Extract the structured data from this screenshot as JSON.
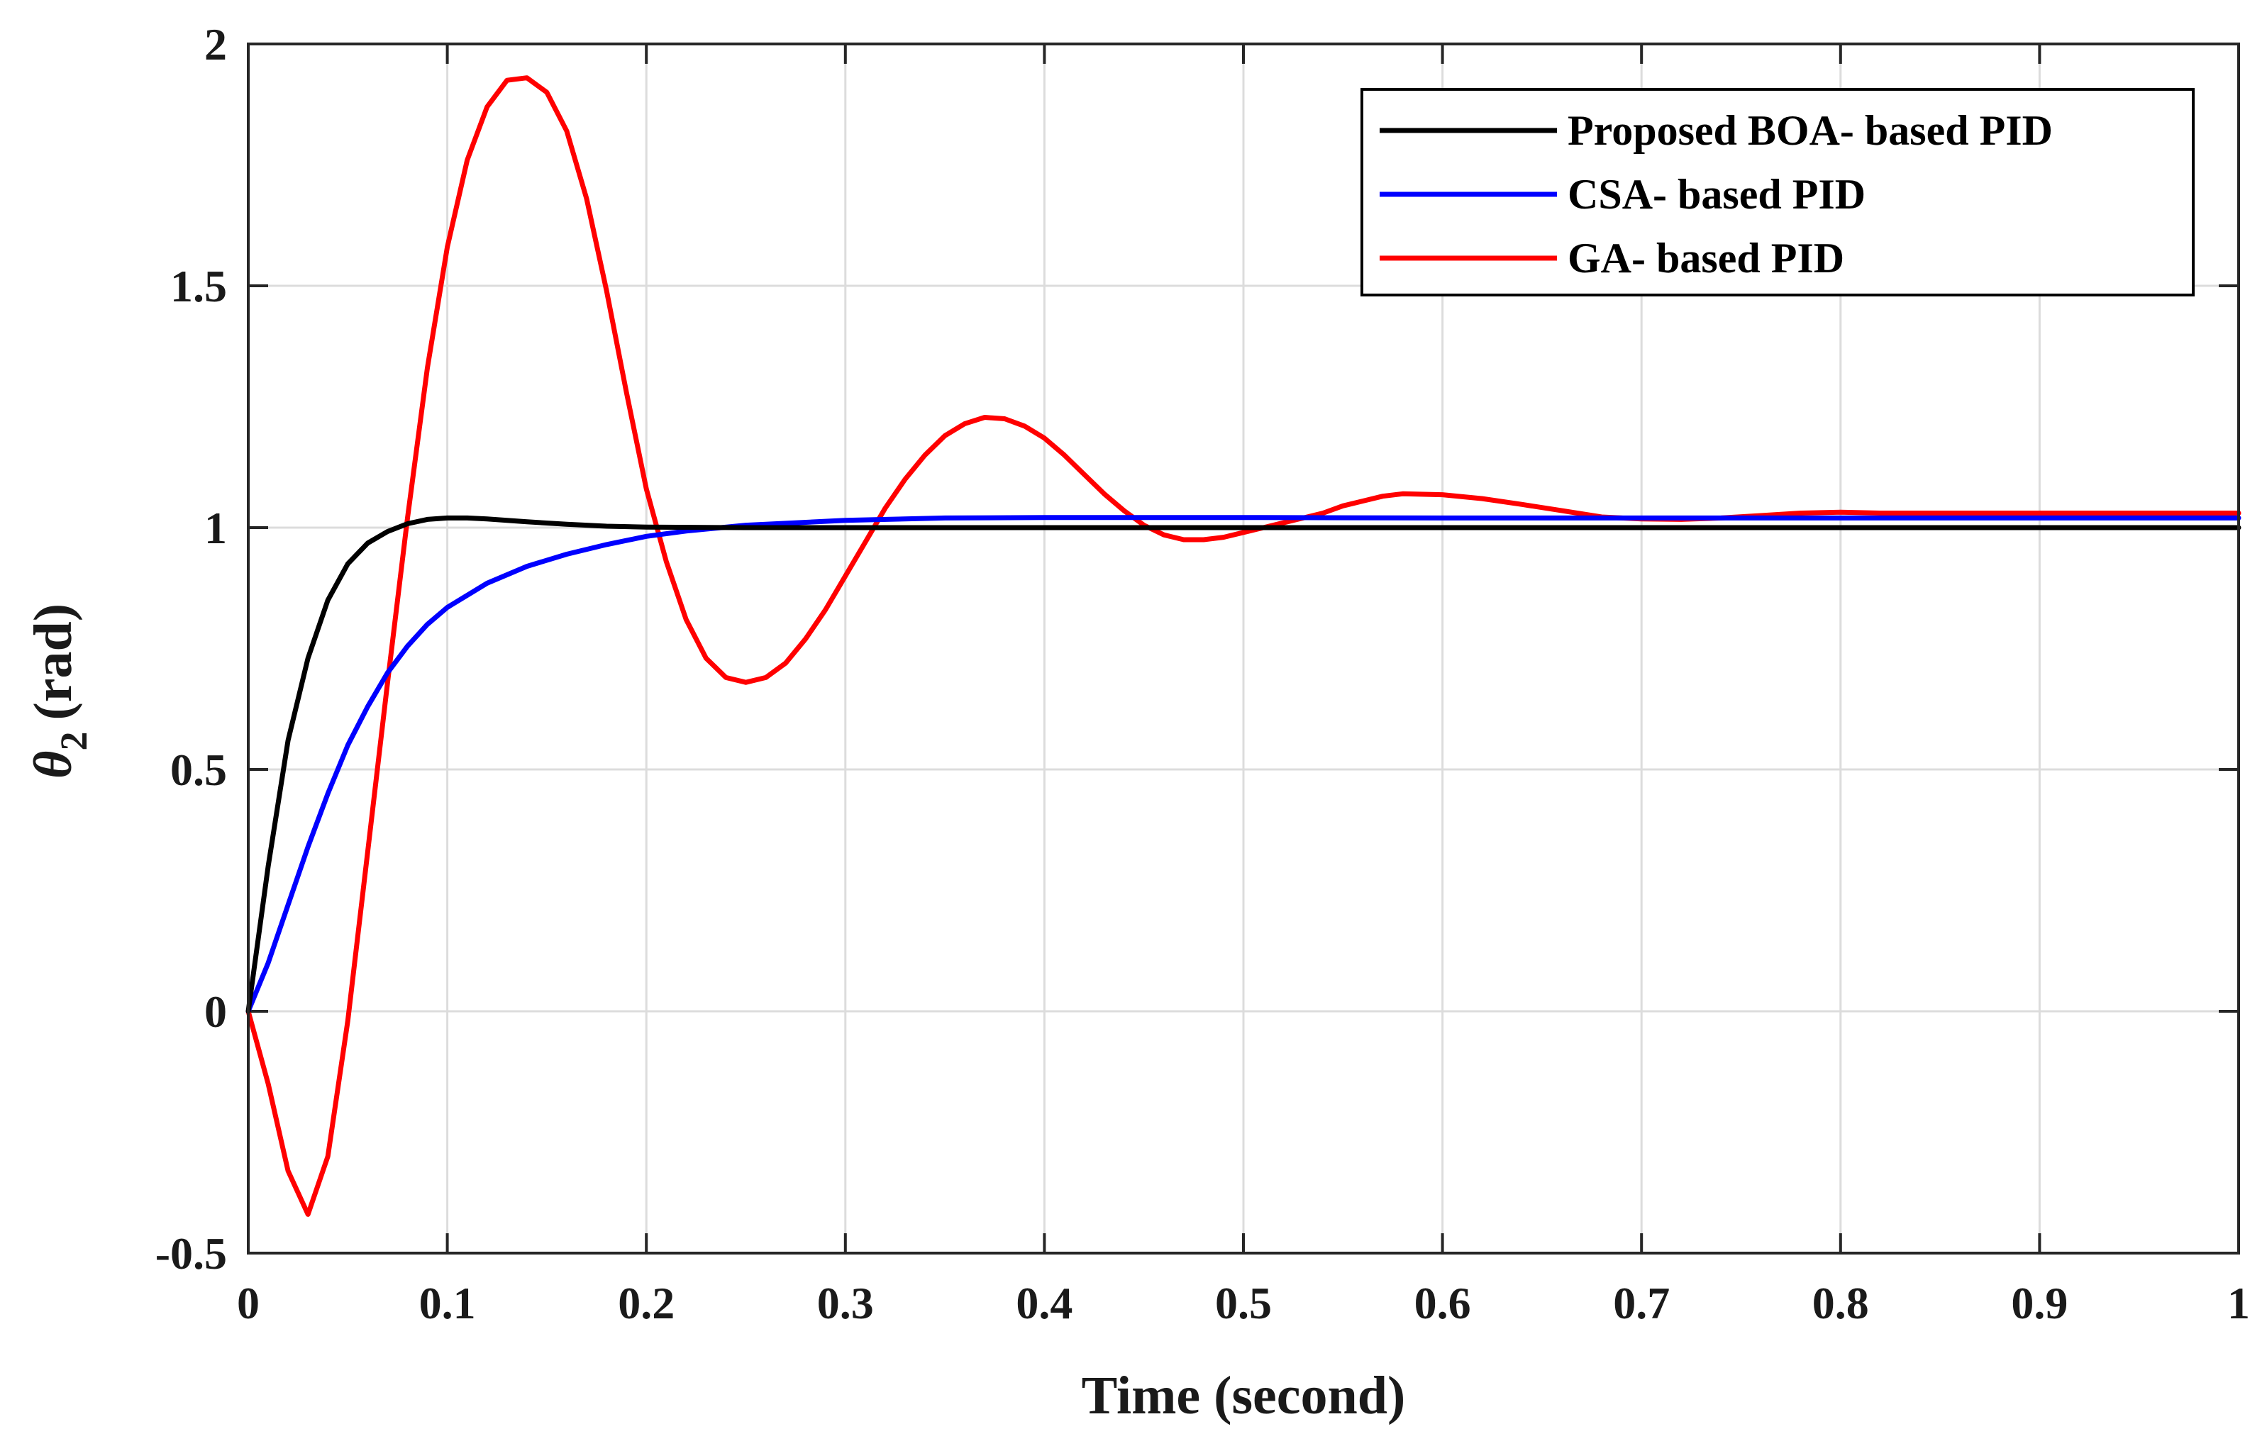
{
  "chart_data": {
    "type": "line",
    "title": "",
    "xlabel": "Time (second)",
    "ylabel": {
      "symbol": "θ",
      "subscript": "2",
      "unit": "(rad)"
    },
    "xlim": [
      0,
      1
    ],
    "ylim": [
      -0.5,
      2
    ],
    "grid": true,
    "legend_position": "top-right",
    "x_ticks": [
      {
        "value": 0,
        "label": "0"
      },
      {
        "value": 0.1,
        "label": "0.1"
      },
      {
        "value": 0.2,
        "label": "0.2"
      },
      {
        "value": 0.3,
        "label": "0.3"
      },
      {
        "value": 0.4,
        "label": "0.4"
      },
      {
        "value": 0.5,
        "label": "0.5"
      },
      {
        "value": 0.6,
        "label": "0.6"
      },
      {
        "value": 0.7,
        "label": "0.7"
      },
      {
        "value": 0.8,
        "label": "0.8"
      },
      {
        "value": 0.9,
        "label": "0.9"
      },
      {
        "value": 1,
        "label": "1"
      }
    ],
    "y_ticks": [
      {
        "value": -0.5,
        "label": "-0.5"
      },
      {
        "value": 0,
        "label": "0"
      },
      {
        "value": 0.5,
        "label": "0.5"
      },
      {
        "value": 1,
        "label": "1"
      },
      {
        "value": 1.5,
        "label": "1.5"
      },
      {
        "value": 2,
        "label": "2"
      }
    ],
    "series": [
      {
        "name": "Proposed BOA- based PID",
        "color": "#000000",
        "x": [
          0,
          0.01,
          0.02,
          0.03,
          0.04,
          0.05,
          0.06,
          0.07,
          0.08,
          0.09,
          0.1,
          0.11,
          0.12,
          0.14,
          0.16,
          0.18,
          0.2,
          0.25,
          0.3,
          0.4,
          0.5,
          0.6,
          0.7,
          0.8,
          0.9,
          1.0
        ],
        "y": [
          0,
          0.3,
          0.56,
          0.73,
          0.85,
          0.925,
          0.968,
          0.992,
          1.008,
          1.017,
          1.02,
          1.02,
          1.018,
          1.012,
          1.007,
          1.003,
          1.001,
          1.0,
          1.0,
          1.0,
          1.0,
          1.0,
          1.0,
          1.0,
          1.0,
          1.0
        ]
      },
      {
        "name": "CSA- based PID",
        "color": "#0000ff",
        "x": [
          0,
          0.01,
          0.02,
          0.03,
          0.04,
          0.05,
          0.06,
          0.07,
          0.08,
          0.09,
          0.1,
          0.12,
          0.14,
          0.16,
          0.18,
          0.2,
          0.22,
          0.25,
          0.3,
          0.35,
          0.4,
          0.5,
          0.6,
          0.7,
          0.8,
          0.9,
          1.0
        ],
        "y": [
          0,
          0.1,
          0.22,
          0.34,
          0.45,
          0.55,
          0.63,
          0.7,
          0.755,
          0.8,
          0.835,
          0.885,
          0.92,
          0.945,
          0.965,
          0.982,
          0.993,
          1.005,
          1.015,
          1.02,
          1.021,
          1.021,
          1.02,
          1.02,
          1.02,
          1.02,
          1.02
        ]
      },
      {
        "name": "GA- based PID",
        "color": "#ff0000",
        "x": [
          0,
          0.01,
          0.02,
          0.03,
          0.04,
          0.05,
          0.06,
          0.07,
          0.08,
          0.09,
          0.1,
          0.11,
          0.12,
          0.13,
          0.14,
          0.15,
          0.16,
          0.17,
          0.18,
          0.19,
          0.2,
          0.21,
          0.22,
          0.23,
          0.24,
          0.25,
          0.26,
          0.27,
          0.28,
          0.29,
          0.3,
          0.31,
          0.32,
          0.33,
          0.34,
          0.35,
          0.36,
          0.37,
          0.38,
          0.39,
          0.4,
          0.41,
          0.42,
          0.43,
          0.44,
          0.45,
          0.46,
          0.47,
          0.48,
          0.49,
          0.5,
          0.51,
          0.52,
          0.53,
          0.54,
          0.55,
          0.56,
          0.57,
          0.58,
          0.6,
          0.62,
          0.64,
          0.66,
          0.68,
          0.7,
          0.72,
          0.74,
          0.76,
          0.78,
          0.8,
          0.82,
          0.85,
          0.88,
          0.9,
          0.92,
          0.95,
          0.98,
          1.0
        ],
        "y": [
          0,
          -0.15,
          -0.33,
          -0.42,
          -0.3,
          -0.02,
          0.33,
          0.68,
          1.02,
          1.33,
          1.58,
          1.76,
          1.87,
          1.925,
          1.93,
          1.9,
          1.82,
          1.68,
          1.49,
          1.28,
          1.08,
          0.93,
          0.81,
          0.73,
          0.69,
          0.68,
          0.69,
          0.72,
          0.77,
          0.83,
          0.9,
          0.97,
          1.04,
          1.1,
          1.15,
          1.19,
          1.215,
          1.228,
          1.225,
          1.21,
          1.185,
          1.15,
          1.11,
          1.07,
          1.035,
          1.005,
          0.985,
          0.975,
          0.975,
          0.98,
          0.99,
          1.0,
          1.01,
          1.02,
          1.03,
          1.045,
          1.055,
          1.065,
          1.07,
          1.068,
          1.06,
          1.048,
          1.035,
          1.022,
          1.018,
          1.017,
          1.02,
          1.025,
          1.03,
          1.032,
          1.03,
          1.03,
          1.03,
          1.03,
          1.03,
          1.03,
          1.03,
          1.03
        ]
      }
    ]
  }
}
